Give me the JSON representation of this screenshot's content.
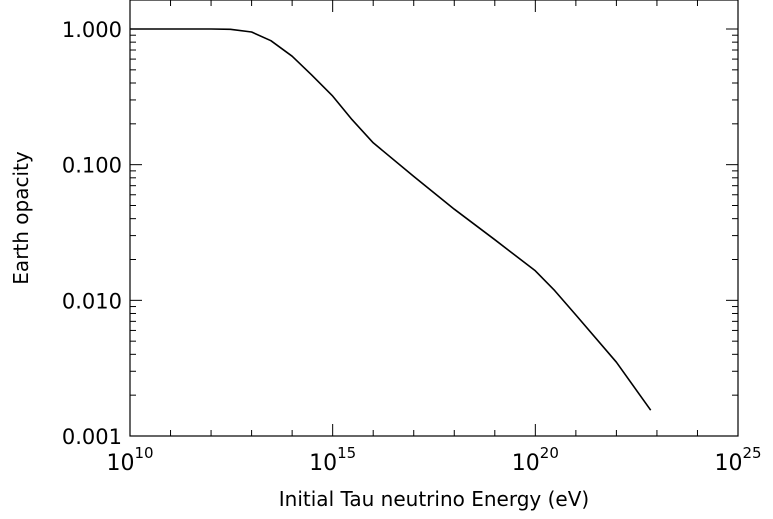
{
  "chart_data": {
    "type": "line",
    "xlabel": "Initial Tau neutrino Energy (eV)",
    "ylabel": "Earth opacity",
    "x_scale": "log",
    "y_scale": "log",
    "xlim": [
      10000000000.0,
      1e+25
    ],
    "ylim": [
      0.001,
      1.0
    ],
    "x_ticks": [
      {
        "base": "10",
        "exp": "10",
        "value": 10000000000.0
      },
      {
        "base": "10",
        "exp": "15",
        "value": 1000000000000000.0
      },
      {
        "base": "10",
        "exp": "20",
        "value": 1e+20
      },
      {
        "base": "10",
        "exp": "25",
        "value": 1e+25
      }
    ],
    "y_ticks": [
      {
        "label": "1.000",
        "value": 1.0
      },
      {
        "label": "0.100",
        "value": 0.1
      },
      {
        "label": "0.010",
        "value": 0.01
      },
      {
        "label": "0.001",
        "value": 0.001
      }
    ],
    "grid": false,
    "legend": "none",
    "series": [
      {
        "color": "#000000",
        "x": [
          10000000000.0,
          100000000000.0,
          1000000000000.0,
          3000000000000.0,
          10000000000000.0,
          30000000000000.0,
          100000000000000.0,
          300000000000000.0,
          1000000000000000.0,
          3000000000000000.0,
          1e+16,
          1e+17,
          1e+18,
          1e+19,
          1e+20,
          3e+20,
          1e+21,
          1e+22,
          7e+22
        ],
        "y": [
          1.0,
          1.0,
          1.0,
          0.995,
          0.95,
          0.82,
          0.63,
          0.46,
          0.32,
          0.215,
          0.145,
          0.082,
          0.047,
          0.028,
          0.0165,
          0.0118,
          0.0078,
          0.0035,
          0.00155
        ]
      }
    ]
  }
}
